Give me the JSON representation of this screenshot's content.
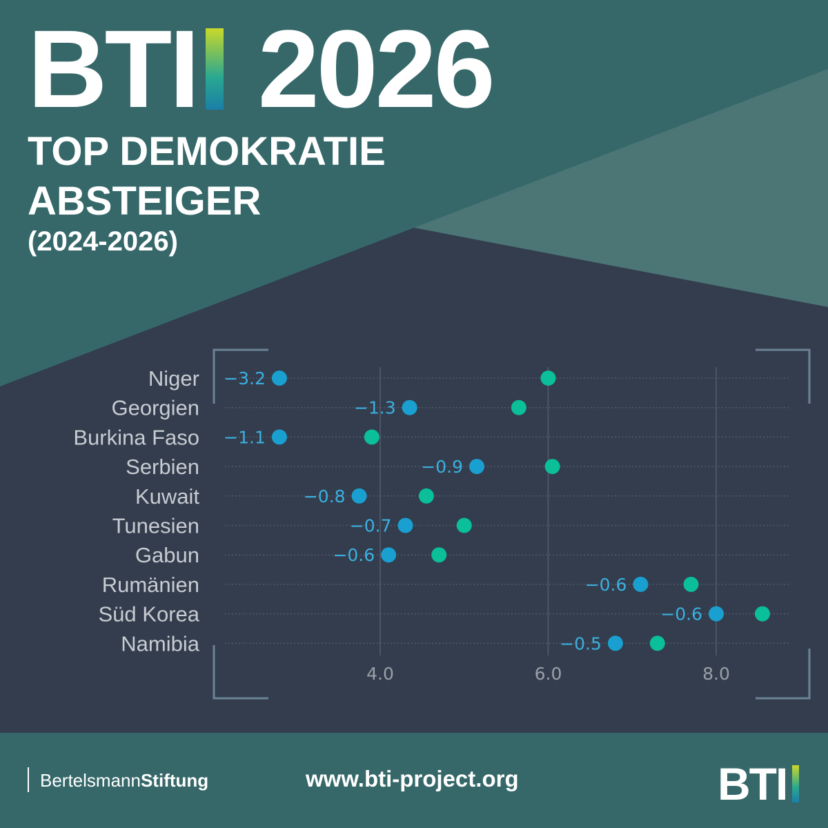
{
  "header": {
    "logo_text": "BTI",
    "year": "2026",
    "title_line1": "TOP DEMOKRATIE",
    "title_line2": "ABSTEIGER",
    "period": "(2024-2026)"
  },
  "colors": {
    "start": "#1aa0d0",
    "end": "#0abf9a",
    "label": "#3bb0e0",
    "country": "#c8ccd2",
    "tick": "#9aa0a8",
    "background": "#333d4d",
    "teal": "#36686a"
  },
  "chart_data": {
    "type": "dumbbell",
    "title": "TOP DEMOKRATIE ABSTEIGER (2024-2026)",
    "categories": [
      "Niger",
      "Georgien",
      "Burkina Faso",
      "Serbien",
      "Kuwait",
      "Tunesien",
      "Gabun",
      "Rumänien",
      "Süd Korea",
      "Namibia"
    ],
    "series": [
      {
        "name": "2026",
        "values": [
          2.8,
          4.35,
          2.8,
          5.15,
          3.75,
          4.3,
          4.1,
          7.1,
          8.0,
          6.8
        ]
      },
      {
        "name": "2024",
        "values": [
          6.0,
          5.65,
          3.9,
          6.05,
          4.55,
          5.0,
          4.7,
          7.7,
          8.55,
          7.3
        ]
      }
    ],
    "labels": [
      "−3.2",
      "−1.3",
      "−1.1",
      "−0.9",
      "−0.8",
      "−0.7",
      "−0.6",
      "−0.6",
      "−0.6",
      "−0.5"
    ],
    "xticks": [
      "4.0",
      "6.0",
      "8.0"
    ],
    "xtick_values": [
      4,
      6,
      8
    ],
    "xlim": [
      2.0,
      10.0
    ],
    "grid": true
  },
  "footer": {
    "brand_regular": "Bertelsmann",
    "brand_bold": "Stiftung",
    "url": "www.bti-project.org",
    "logo_text": "BTI"
  }
}
